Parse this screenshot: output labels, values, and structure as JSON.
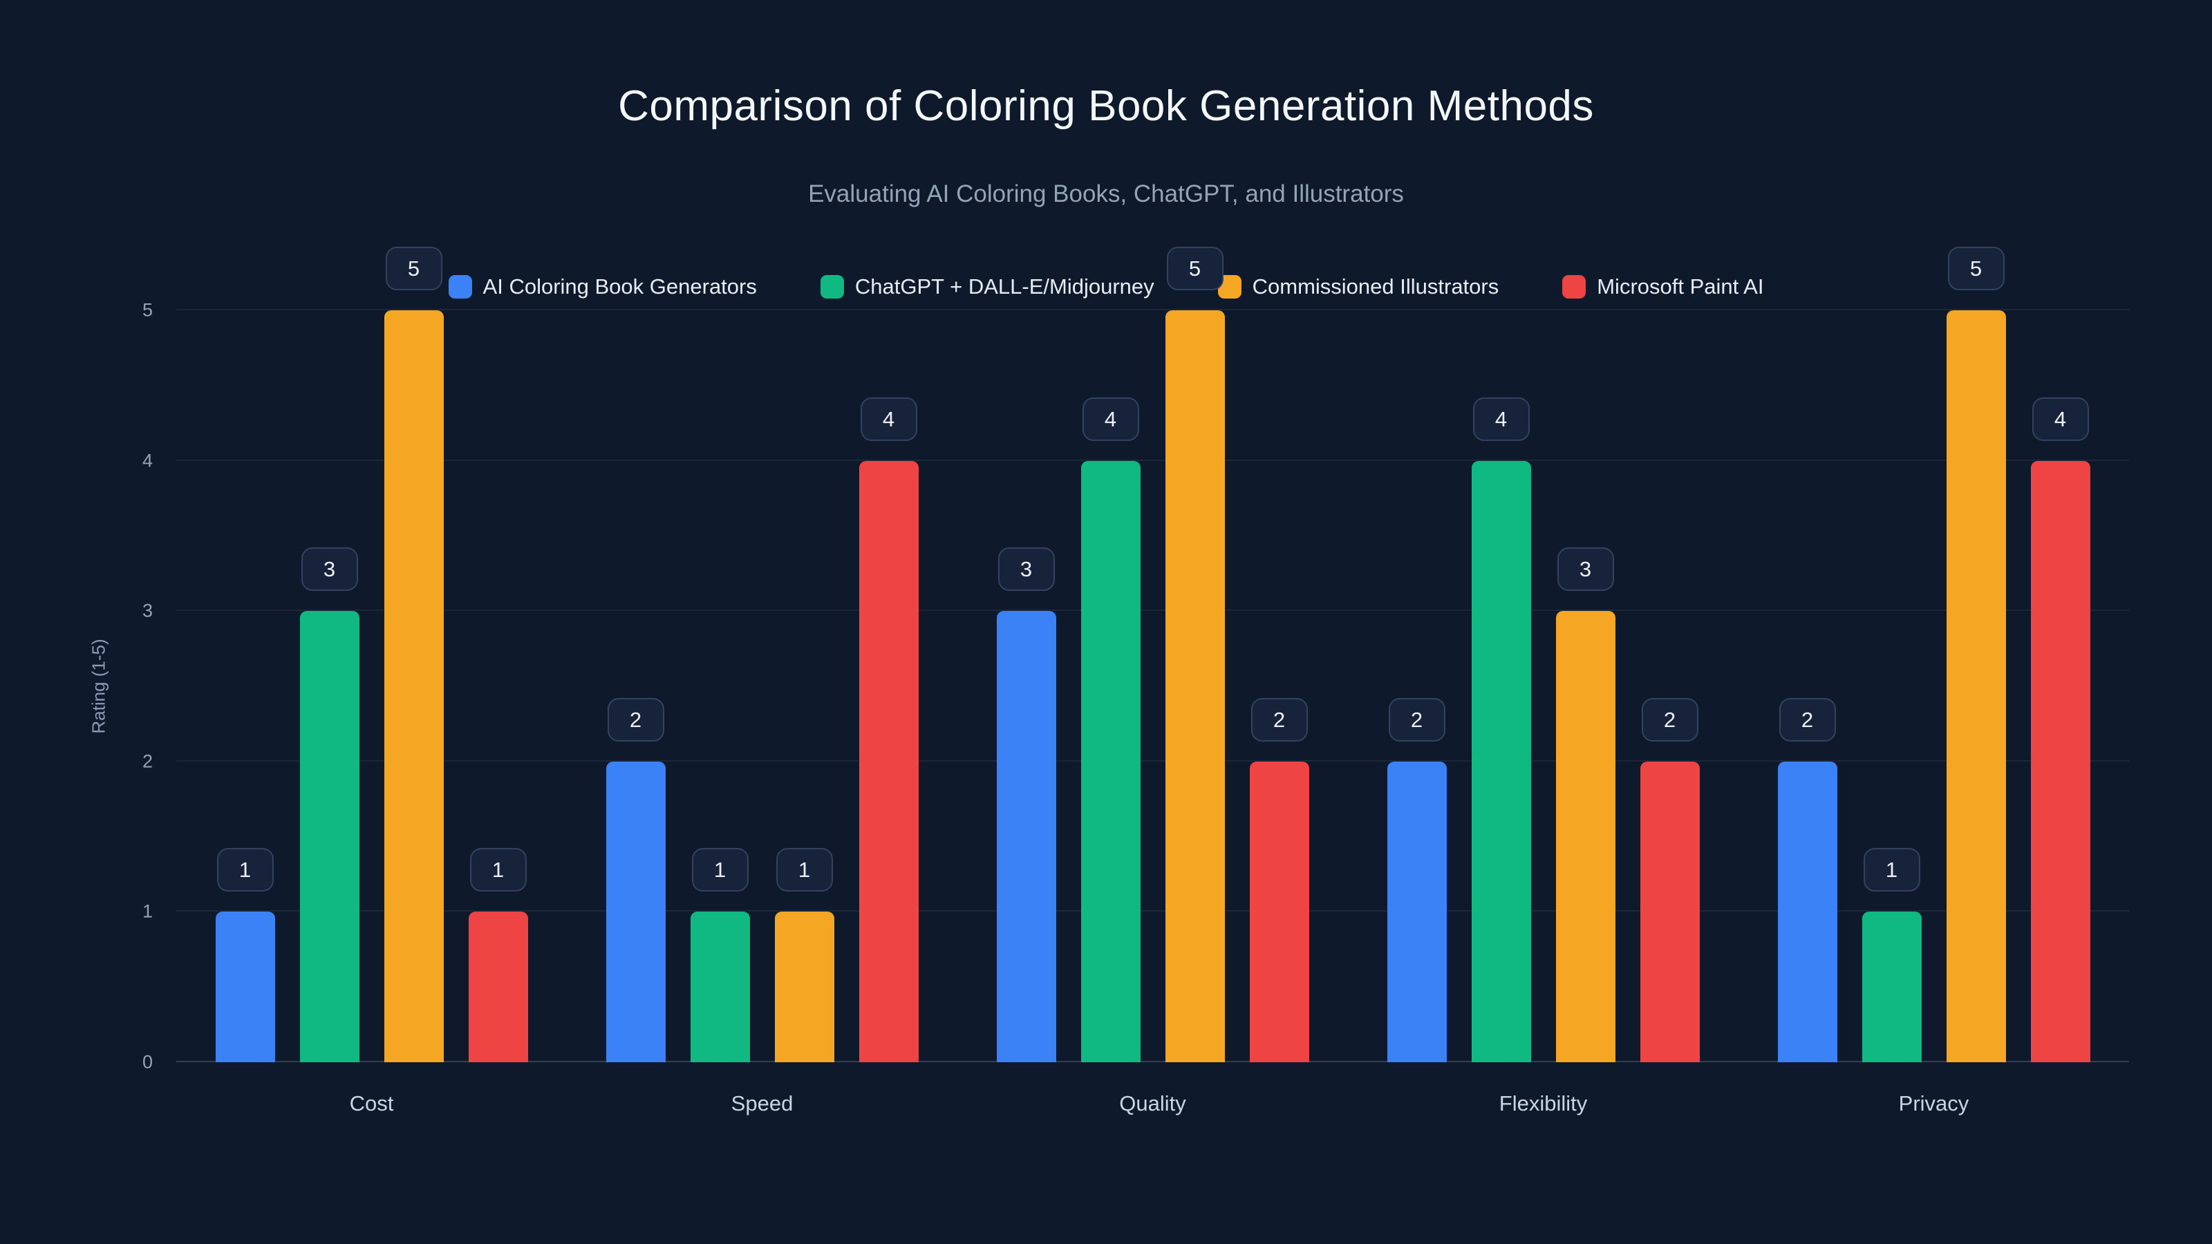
{
  "header": {
    "title": "Comparison of Coloring Book Generation Methods",
    "subtitle": "Evaluating AI Coloring Books, ChatGPT, and Illustrators"
  },
  "colors": {
    "background": "#0e1a2b",
    "badge_background": "#16233a",
    "badge_border": "#32425f",
    "grid": "rgba(148,163,184,0.10)"
  },
  "chart_data": {
    "type": "bar",
    "title": "Comparison of Coloring Book Generation Methods",
    "subtitle": "Evaluating AI Coloring Books, ChatGPT, and Illustrators",
    "xlabel": "",
    "ylabel": "Rating (1-5)",
    "ylim": [
      0,
      5
    ],
    "yticks": [
      0,
      1,
      2,
      3,
      4,
      5
    ],
    "grid": true,
    "legend_position": "top",
    "categories": [
      "Cost",
      "Speed",
      "Quality",
      "Flexibility",
      "Privacy"
    ],
    "series": [
      {
        "name": "AI Coloring Book Generators",
        "color": "#3b82f6",
        "values": [
          1,
          2,
          3,
          2,
          2
        ]
      },
      {
        "name": "ChatGPT + DALL-E/Midjourney",
        "color": "#10b981",
        "values": [
          3,
          1,
          4,
          4,
          1
        ]
      },
      {
        "name": "Commissioned Illustrators",
        "color": "#f5a623",
        "values": [
          5,
          1,
          5,
          3,
          5
        ]
      },
      {
        "name": "Microsoft Paint AI",
        "color": "#ef4444",
        "values": [
          1,
          4,
          2,
          2,
          4
        ]
      }
    ]
  }
}
